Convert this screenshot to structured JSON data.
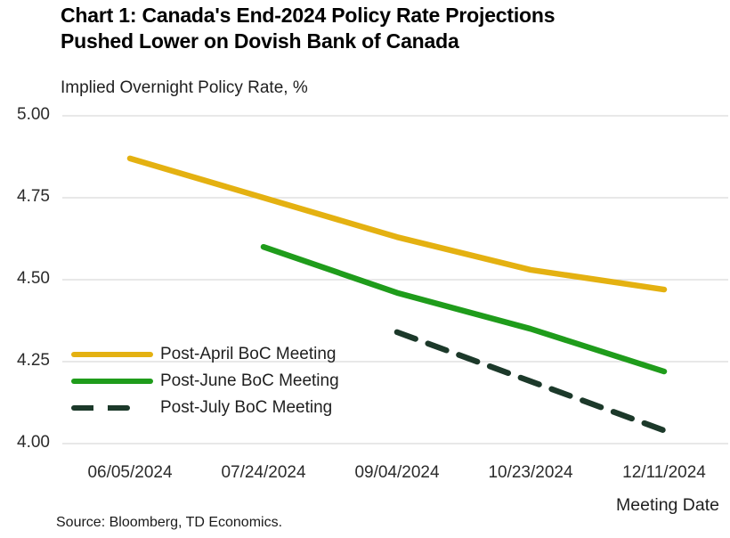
{
  "page": {
    "title_line1": "Chart 1: Canada's End-2024 Policy Rate Projections",
    "title_line2": "Pushed Lower on Dovish Bank of Canada",
    "subtitle": "Implied Overnight Policy Rate, %",
    "source": "Source: Bloomberg, TD Economics."
  },
  "chart_data": {
    "type": "line",
    "title": "Chart 1: Canada's End-2024 Policy Rate Projections Pushed Lower on Dovish Bank of Canada",
    "ylabel": "Implied Overnight Policy Rate, %",
    "xlabel": "Meeting Date",
    "categories": [
      "06/05/2024",
      "07/24/2024",
      "09/04/2024",
      "10/23/2024",
      "12/11/2024"
    ],
    "series": [
      {
        "name": "Post-April BoC Meeting",
        "style": "solid",
        "color": "#E4B111",
        "values": [
          4.87,
          4.75,
          4.63,
          4.53,
          4.47
        ]
      },
      {
        "name": "Post-June BoC Meeting",
        "style": "solid",
        "color": "#1F9C1B",
        "values": [
          null,
          4.6,
          4.46,
          4.35,
          4.22
        ]
      },
      {
        "name": "Post-July BoC Meeting",
        "style": "dashed",
        "color": "#1C392A",
        "values": [
          null,
          null,
          4.34,
          4.19,
          4.04
        ]
      }
    ],
    "ylim": [
      4.0,
      5.0
    ],
    "ytick_labels": [
      "5.00",
      "4.75",
      "4.50",
      "4.25",
      "4.00"
    ],
    "grid": "horizontal-only",
    "gridline_color": "#DBDBDB",
    "legend_position": "inside-bottom-left"
  }
}
